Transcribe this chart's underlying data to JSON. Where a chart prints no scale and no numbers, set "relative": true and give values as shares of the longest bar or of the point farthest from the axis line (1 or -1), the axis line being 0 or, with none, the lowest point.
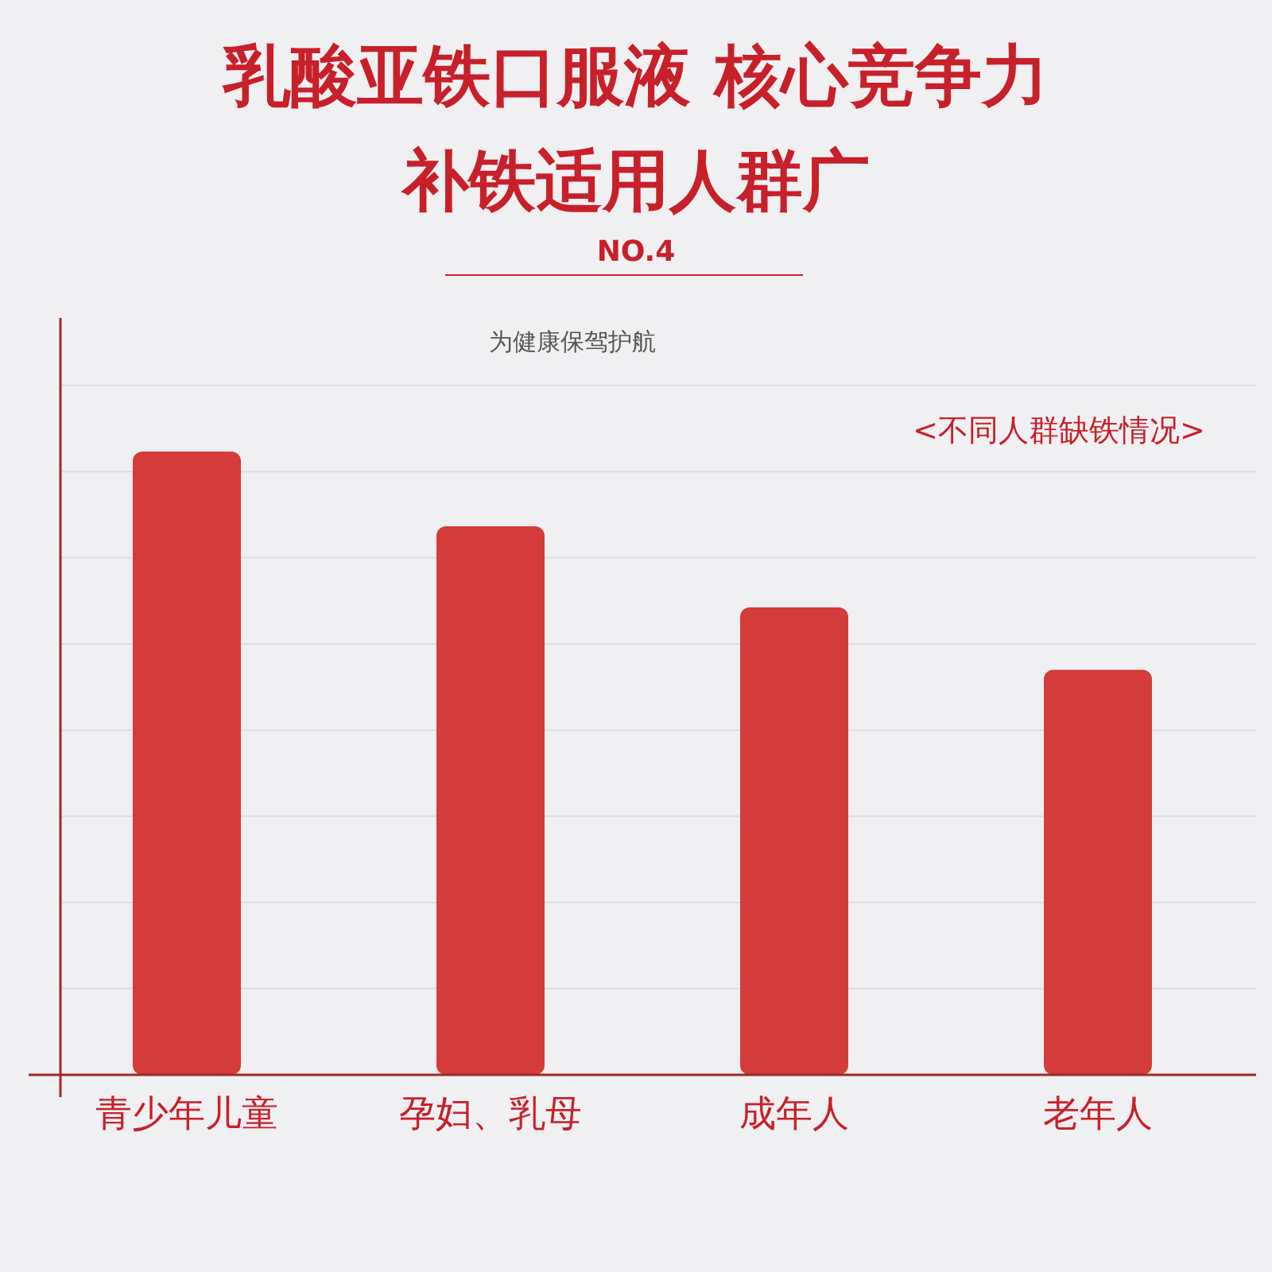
{
  "chart_data": {
    "type": "bar",
    "title": "乳酸亚铁口服液 核心竞争力",
    "subtitle": "补铁适用人群广",
    "annotations": [
      "NO.4",
      "为健康保驾护航",
      "<不同人群缺铁情况>"
    ],
    "categories": [
      "青少年儿童",
      "孕妇、乳母",
      "成年人",
      "老年人"
    ],
    "values": [
      1,
      0.88,
      0.75,
      0.65
    ],
    "color": "#d43b3b",
    "relative": true,
    "grid": "y"
  }
}
